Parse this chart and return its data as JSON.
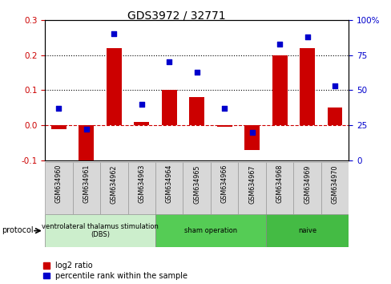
{
  "title": "GDS3972 / 32771",
  "samples": [
    "GSM634960",
    "GSM634961",
    "GSM634962",
    "GSM634963",
    "GSM634964",
    "GSM634965",
    "GSM634966",
    "GSM634967",
    "GSM634968",
    "GSM634969",
    "GSM634970"
  ],
  "log2_ratio": [
    -0.01,
    -0.11,
    0.22,
    0.01,
    0.1,
    0.08,
    -0.005,
    -0.07,
    0.2,
    0.22,
    0.05
  ],
  "percentile_rank": [
    37,
    22,
    90,
    40,
    70,
    63,
    37,
    20,
    83,
    88,
    53
  ],
  "ylim_left": [
    -0.1,
    0.3
  ],
  "ylim_right": [
    0,
    100
  ],
  "yticks_left": [
    -0.1,
    0.0,
    0.1,
    0.2,
    0.3
  ],
  "yticks_right": [
    0,
    25,
    50,
    75,
    100
  ],
  "bar_color": "#cc0000",
  "scatter_color": "#0000cc",
  "hline_color": "#cc0000",
  "dotted_color": "#000000",
  "group_ranges": [
    {
      "start": 0,
      "end": 4,
      "label": "ventrolateral thalamus stimulation\n(DBS)",
      "color": "#cceecc"
    },
    {
      "start": 4,
      "end": 8,
      "label": "sham operation",
      "color": "#55cc55"
    },
    {
      "start": 8,
      "end": 11,
      "label": "naive",
      "color": "#44bb44"
    }
  ],
  "legend_bar_label": "log2 ratio",
  "legend_scatter_label": "percentile rank within the sample",
  "protocol_label": "protocol"
}
